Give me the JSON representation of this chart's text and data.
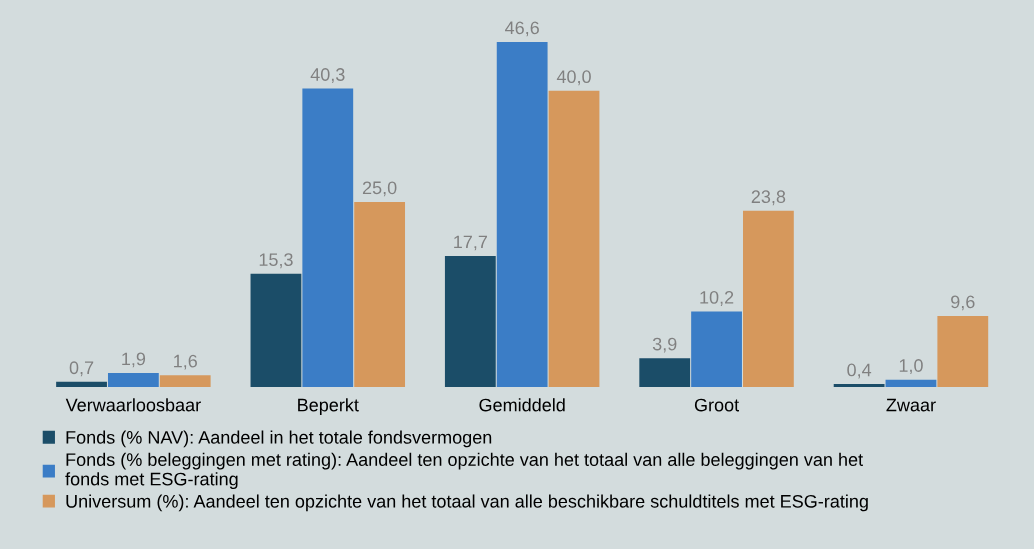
{
  "chart_data": {
    "type": "bar",
    "categories": [
      "Verwaarloosbaar",
      "Beperkt",
      "Gemiddeld",
      "Groot",
      "Zwaar"
    ],
    "series": [
      {
        "name": "Fonds (% NAV): Aandeel in het totale fondsvermogen",
        "color": "#1b4d68",
        "values": [
          0.7,
          15.3,
          17.7,
          3.9,
          0.4
        ],
        "value_labels": [
          "0,7",
          "15,3",
          "17,7",
          "3,9",
          "0,4"
        ]
      },
      {
        "name": "Fonds (% beleggingen met rating): Aandeel ten opzichte van het totaal van alle beleggingen van het\nfonds met ESG-rating",
        "color": "#3b7dc6",
        "values": [
          1.9,
          40.3,
          46.6,
          10.2,
          1.0
        ],
        "value_labels": [
          "1,9",
          "40,3",
          "46,6",
          "10,2",
          "1,0"
        ]
      },
      {
        "name": "Universum (%): Aandeel ten opzichte van het totaal van alle beschikbare schuldtitels met ESG-rating",
        "color": "#d6985c",
        "values": [
          1.6,
          25.0,
          40.0,
          23.8,
          9.6
        ],
        "value_labels": [
          "1,6",
          "25,0",
          "40,0",
          "23,8",
          "9,6"
        ]
      }
    ],
    "legend": "bottom",
    "grid": false
  }
}
